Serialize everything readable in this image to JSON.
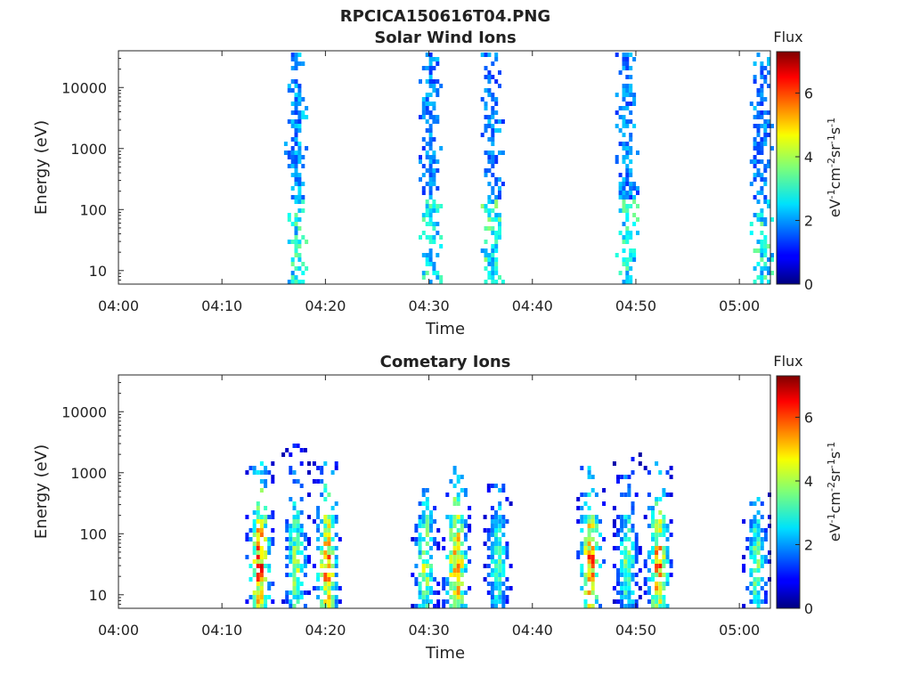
{
  "figure": {
    "file_title": "RPCICA150616T04.PNG"
  },
  "chart_data": [
    {
      "type": "heatmap",
      "title": "Solar Wind Ions",
      "xlabel": "Time",
      "ylabel": "Energy (eV)",
      "yscale": "log",
      "xlim": [
        "04:00",
        "05:03"
      ],
      "ylim": [
        6,
        40000
      ],
      "xticks": [
        "04:00",
        "04:10",
        "04:20",
        "04:30",
        "04:40",
        "04:50",
        "05:00"
      ],
      "yticks": [
        "10",
        "100",
        "1000",
        "10000"
      ],
      "colorbar": {
        "title": "Flux",
        "label": "eV-1cm-2sr-1s-1",
        "range": [
          0,
          7.3
        ],
        "ticks": [
          "0",
          "2",
          "4",
          "6"
        ],
        "colormap": "jet"
      },
      "grid": false,
      "bursts": [
        {
          "center": "04:17:00",
          "emin": 6,
          "emax": 35000,
          "peak_flux": 2.2,
          "low_energy_flux": 3.0
        },
        {
          "center": "04:30:00",
          "emin": 6,
          "emax": 35000,
          "peak_flux": 2.0,
          "low_energy_flux": 3.0
        },
        {
          "center": "04:36:00",
          "emin": 6,
          "emax": 35000,
          "peak_flux": 2.0,
          "low_energy_flux": 3.2
        },
        {
          "center": "04:49:00",
          "emin": 6,
          "emax": 35000,
          "peak_flux": 2.0,
          "low_energy_flux": 3.0
        },
        {
          "center": "05:02:00",
          "emin": 6,
          "emax": 35000,
          "peak_flux": 2.0,
          "low_energy_flux": 3.0
        }
      ]
    },
    {
      "type": "heatmap",
      "title": "Cometary Ions",
      "xlabel": "Time",
      "ylabel": "Energy (eV)",
      "yscale": "log",
      "xlim": [
        "04:00",
        "05:03"
      ],
      "ylim": [
        6,
        40000
      ],
      "xticks": [
        "04:00",
        "04:10",
        "04:20",
        "04:30",
        "04:40",
        "04:50",
        "05:00"
      ],
      "yticks": [
        "10",
        "100",
        "1000",
        "10000"
      ],
      "colorbar": {
        "title": "Flux",
        "label": "eV-1cm-2sr-1s-1",
        "range": [
          0,
          7.3
        ],
        "ticks": [
          "0",
          "2",
          "4",
          "6"
        ],
        "colormap": "jet"
      },
      "grid": false,
      "bursts": [
        {
          "center": "04:13:30",
          "emin": 6,
          "emax": 1500,
          "peak_flux": 6.5
        },
        {
          "center": "04:17:00",
          "emin": 6,
          "emax": 3000,
          "peak_flux": 4.5
        },
        {
          "center": "04:20:00",
          "emin": 6,
          "emax": 1500,
          "peak_flux": 6.0
        },
        {
          "center": "04:29:30",
          "emin": 6,
          "emax": 800,
          "peak_flux": 4.5
        },
        {
          "center": "04:32:30",
          "emin": 6,
          "emax": 1200,
          "peak_flux": 6.2
        },
        {
          "center": "04:36:30",
          "emin": 6,
          "emax": 900,
          "peak_flux": 3.8
        },
        {
          "center": "04:45:30",
          "emin": 6,
          "emax": 1500,
          "peak_flux": 6.3
        },
        {
          "center": "04:49:00",
          "emin": 6,
          "emax": 2000,
          "peak_flux": 4.0
        },
        {
          "center": "04:52:00",
          "emin": 6,
          "emax": 1500,
          "peak_flux": 6.0
        },
        {
          "center": "05:01:30",
          "emin": 6,
          "emax": 500,
          "peak_flux": 4.0
        }
      ]
    }
  ]
}
